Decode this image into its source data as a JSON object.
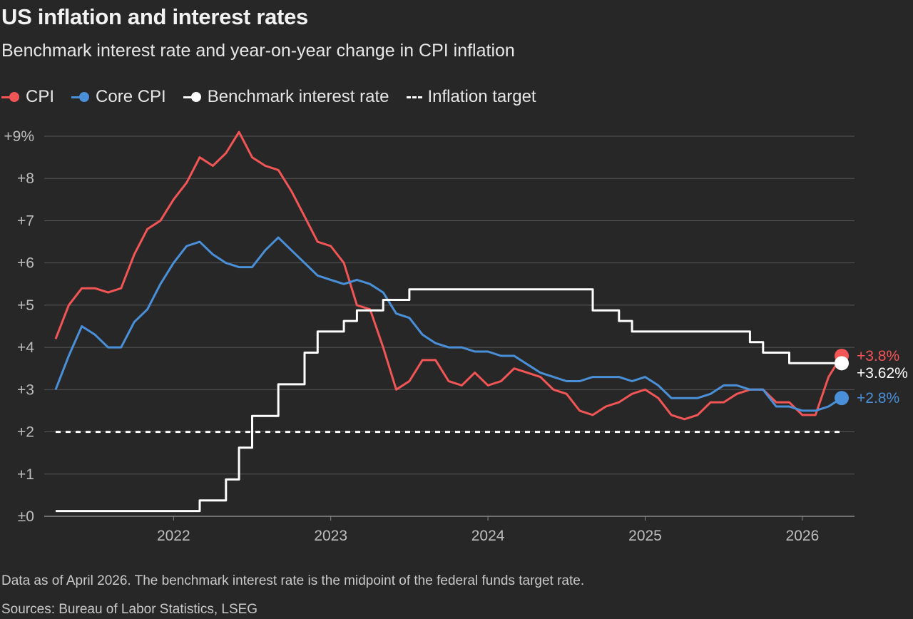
{
  "title": "US inflation and interest rates",
  "subtitle": "Benchmark interest rate and year-on-year change in CPI inflation",
  "legend": [
    {
      "label": "CPI",
      "color": "#f25555",
      "style": "dot-line",
      "icon": "red-dot-line"
    },
    {
      "label": "Core CPI",
      "color": "#4a90d9",
      "style": "dot-line",
      "icon": "blue-dot-line"
    },
    {
      "label": "Benchmark interest rate",
      "color": "#ffffff",
      "style": "dot-line",
      "icon": "white-dot-line"
    },
    {
      "label": "Inflation target",
      "color": "#ffffff",
      "style": "dashed",
      "icon": "dashed-line"
    }
  ],
  "footnote": "Data as of April 2026. The benchmark interest rate is the midpoint of the federal funds target rate.",
  "sources": "Sources: Bureau of Labor Statistics, LSEG",
  "chart_data": {
    "type": "line",
    "title": "US inflation and interest rates",
    "subtitle": "Benchmark interest rate and year-on-year change in CPI inflation",
    "xlabel": "",
    "ylabel": "",
    "x_range": [
      "2021-04",
      "2026-03"
    ],
    "xticks": [
      {
        "label": "2022",
        "year": 2022
      },
      {
        "label": "2023",
        "year": 2023
      },
      {
        "label": "2024",
        "year": 2024
      },
      {
        "label": "2025",
        "year": 2025
      },
      {
        "label": "2026",
        "year": 2026
      }
    ],
    "ylim": [
      0,
      9
    ],
    "yticks": [
      {
        "label": "±0",
        "value": 0
      },
      {
        "label": "+1",
        "value": 1
      },
      {
        "label": "+2",
        "value": 2
      },
      {
        "label": "+3",
        "value": 3
      },
      {
        "label": "+4",
        "value": 4
      },
      {
        "label": "+5",
        "value": 5
      },
      {
        "label": "+6",
        "value": 6
      },
      {
        "label": "+7",
        "value": 7
      },
      {
        "label": "+8",
        "value": 8
      },
      {
        "label": "+9%",
        "value": 9
      }
    ],
    "grid": true,
    "legend_position": "top-left",
    "series": [
      {
        "name": "CPI",
        "color": "#f25555",
        "step": false,
        "end_label": "+3.8%",
        "points": [
          [
            "2021-04",
            4.2
          ],
          [
            "2021-05",
            5.0
          ],
          [
            "2021-06",
            5.4
          ],
          [
            "2021-07",
            5.4
          ],
          [
            "2021-08",
            5.3
          ],
          [
            "2021-09",
            5.4
          ],
          [
            "2021-10",
            6.2
          ],
          [
            "2021-11",
            6.8
          ],
          [
            "2021-12",
            7.0
          ],
          [
            "2022-01",
            7.5
          ],
          [
            "2022-02",
            7.9
          ],
          [
            "2022-03",
            8.5
          ],
          [
            "2022-04",
            8.3
          ],
          [
            "2022-05",
            8.6
          ],
          [
            "2022-06",
            9.1
          ],
          [
            "2022-07",
            8.5
          ],
          [
            "2022-08",
            8.3
          ],
          [
            "2022-09",
            8.2
          ],
          [
            "2022-10",
            7.7
          ],
          [
            "2022-11",
            7.1
          ],
          [
            "2022-12",
            6.5
          ],
          [
            "2023-01",
            6.4
          ],
          [
            "2023-02",
            6.0
          ],
          [
            "2023-03",
            5.0
          ],
          [
            "2023-04",
            4.9
          ],
          [
            "2023-05",
            4.0
          ],
          [
            "2023-06",
            3.0
          ],
          [
            "2023-07",
            3.2
          ],
          [
            "2023-08",
            3.7
          ],
          [
            "2023-09",
            3.7
          ],
          [
            "2023-10",
            3.2
          ],
          [
            "2023-11",
            3.1
          ],
          [
            "2023-12",
            3.4
          ],
          [
            "2024-01",
            3.1
          ],
          [
            "2024-02",
            3.2
          ],
          [
            "2024-03",
            3.5
          ],
          [
            "2024-04",
            3.4
          ],
          [
            "2024-05",
            3.3
          ],
          [
            "2024-06",
            3.0
          ],
          [
            "2024-07",
            2.9
          ],
          [
            "2024-08",
            2.5
          ],
          [
            "2024-09",
            2.4
          ],
          [
            "2024-10",
            2.6
          ],
          [
            "2024-11",
            2.7
          ],
          [
            "2024-12",
            2.9
          ],
          [
            "2025-01",
            3.0
          ],
          [
            "2025-02",
            2.8
          ],
          [
            "2025-03",
            2.4
          ],
          [
            "2025-04",
            2.3
          ],
          [
            "2025-05",
            2.4
          ],
          [
            "2025-06",
            2.7
          ],
          [
            "2025-07",
            2.7
          ],
          [
            "2025-08",
            2.9
          ],
          [
            "2025-09",
            3.0
          ],
          [
            "2025-10",
            3.0
          ],
          [
            "2025-11",
            2.7
          ],
          [
            "2025-12",
            2.7
          ],
          [
            "2026-01",
            2.4
          ],
          [
            "2026-02",
            2.4
          ],
          [
            "2026-03",
            3.3
          ],
          [
            "2026-04",
            3.8
          ]
        ]
      },
      {
        "name": "Core CPI",
        "color": "#4a90d9",
        "step": false,
        "end_label": "+2.8%",
        "points": [
          [
            "2021-04",
            3.0
          ],
          [
            "2021-05",
            3.8
          ],
          [
            "2021-06",
            4.5
          ],
          [
            "2021-07",
            4.3
          ],
          [
            "2021-08",
            4.0
          ],
          [
            "2021-09",
            4.0
          ],
          [
            "2021-10",
            4.6
          ],
          [
            "2021-11",
            4.9
          ],
          [
            "2021-12",
            5.5
          ],
          [
            "2022-01",
            6.0
          ],
          [
            "2022-02",
            6.4
          ],
          [
            "2022-03",
            6.5
          ],
          [
            "2022-04",
            6.2
          ],
          [
            "2022-05",
            6.0
          ],
          [
            "2022-06",
            5.9
          ],
          [
            "2022-07",
            5.9
          ],
          [
            "2022-08",
            6.3
          ],
          [
            "2022-09",
            6.6
          ],
          [
            "2022-10",
            6.3
          ],
          [
            "2022-11",
            6.0
          ],
          [
            "2022-12",
            5.7
          ],
          [
            "2023-01",
            5.6
          ],
          [
            "2023-02",
            5.5
          ],
          [
            "2023-03",
            5.6
          ],
          [
            "2023-04",
            5.5
          ],
          [
            "2023-05",
            5.3
          ],
          [
            "2023-06",
            4.8
          ],
          [
            "2023-07",
            4.7
          ],
          [
            "2023-08",
            4.3
          ],
          [
            "2023-09",
            4.1
          ],
          [
            "2023-10",
            4.0
          ],
          [
            "2023-11",
            4.0
          ],
          [
            "2023-12",
            3.9
          ],
          [
            "2024-01",
            3.9
          ],
          [
            "2024-02",
            3.8
          ],
          [
            "2024-03",
            3.8
          ],
          [
            "2024-04",
            3.6
          ],
          [
            "2024-05",
            3.4
          ],
          [
            "2024-06",
            3.3
          ],
          [
            "2024-07",
            3.2
          ],
          [
            "2024-08",
            3.2
          ],
          [
            "2024-09",
            3.3
          ],
          [
            "2024-10",
            3.3
          ],
          [
            "2024-11",
            3.3
          ],
          [
            "2024-12",
            3.2
          ],
          [
            "2025-01",
            3.3
          ],
          [
            "2025-02",
            3.1
          ],
          [
            "2025-03",
            2.8
          ],
          [
            "2025-04",
            2.8
          ],
          [
            "2025-05",
            2.8
          ],
          [
            "2025-06",
            2.9
          ],
          [
            "2025-07",
            3.1
          ],
          [
            "2025-08",
            3.1
          ],
          [
            "2025-09",
            3.0
          ],
          [
            "2025-10",
            3.0
          ],
          [
            "2025-11",
            2.6
          ],
          [
            "2025-12",
            2.6
          ],
          [
            "2026-01",
            2.5
          ],
          [
            "2026-02",
            2.5
          ],
          [
            "2026-03",
            2.6
          ],
          [
            "2026-04",
            2.8
          ]
        ]
      },
      {
        "name": "Benchmark interest rate",
        "color": "#ffffff",
        "step": true,
        "end_label": "+3.62%",
        "points": [
          [
            "2021-04",
            0.125
          ],
          [
            "2022-03",
            0.375
          ],
          [
            "2022-05",
            0.875
          ],
          [
            "2022-06",
            1.625
          ],
          [
            "2022-07",
            2.375
          ],
          [
            "2022-09",
            3.125
          ],
          [
            "2022-11",
            3.875
          ],
          [
            "2022-12",
            4.375
          ],
          [
            "2023-02",
            4.625
          ],
          [
            "2023-03",
            4.875
          ],
          [
            "2023-05",
            5.125
          ],
          [
            "2023-07",
            5.375
          ],
          [
            "2024-09",
            4.875
          ],
          [
            "2024-11",
            4.625
          ],
          [
            "2024-12",
            4.375
          ],
          [
            "2025-09",
            4.125
          ],
          [
            "2025-10",
            3.875
          ],
          [
            "2025-12",
            3.625
          ],
          [
            "2026-04",
            3.625
          ]
        ]
      },
      {
        "name": "Inflation target",
        "color": "#ffffff",
        "dashed": true,
        "points": [
          [
            "2021-04",
            2.0
          ],
          [
            "2026-04",
            2.0
          ]
        ]
      }
    ]
  }
}
